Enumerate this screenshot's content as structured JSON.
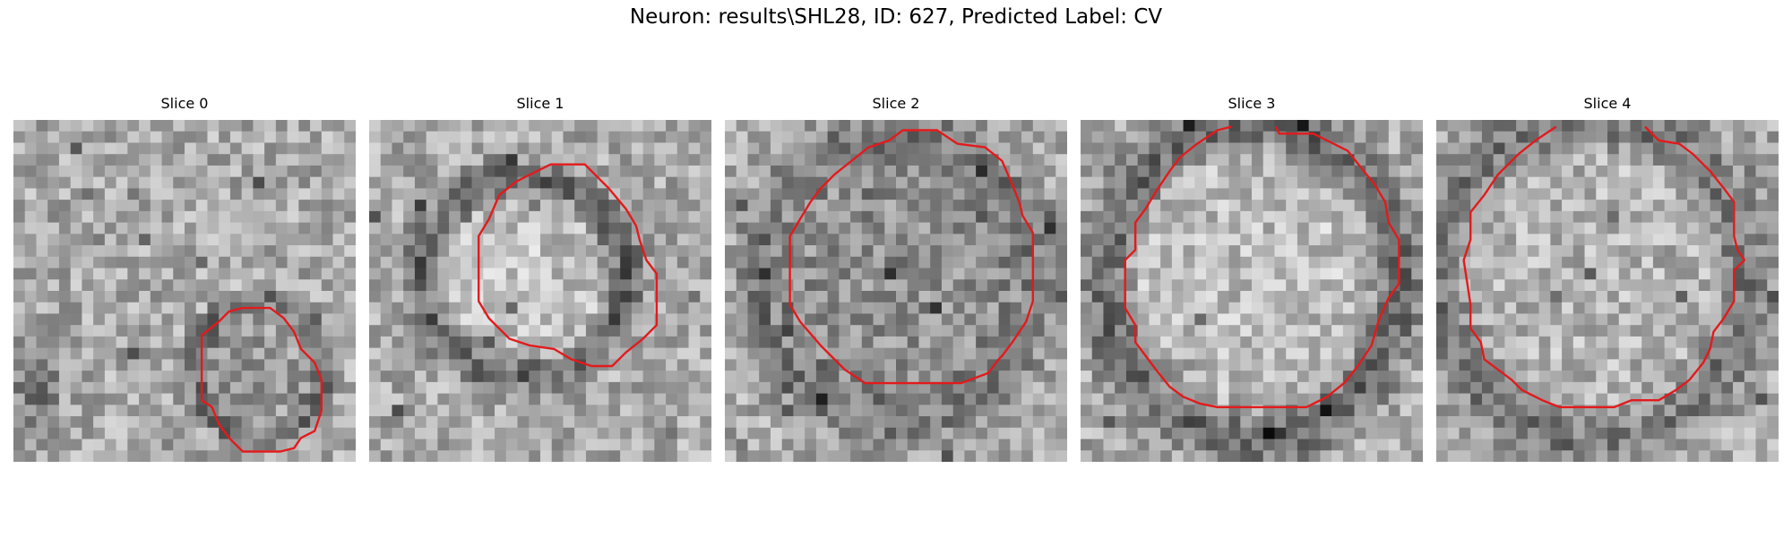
{
  "figure": {
    "suptitle": "Neuron: results\\SHL28, ID: 627, Predicted Label: CV"
  },
  "slices": [
    {
      "title": "Slice 0",
      "contour_color": "#e31a1c"
    },
    {
      "title": "Slice 1",
      "contour_color": "#e31a1c"
    },
    {
      "title": "Slice 2",
      "contour_color": "#e31a1c"
    },
    {
      "title": "Slice 3",
      "contour_color": "#e31a1c"
    },
    {
      "title": "Slice 4",
      "contour_color": "#e31a1c"
    }
  ]
}
